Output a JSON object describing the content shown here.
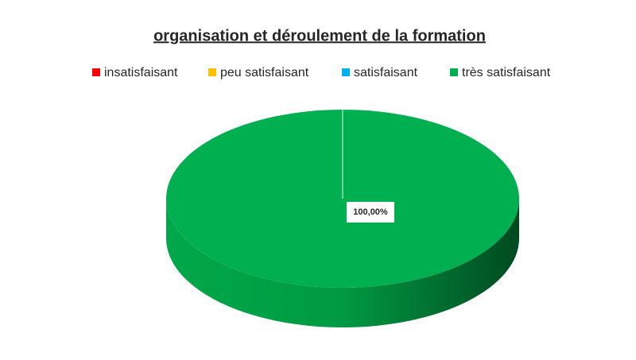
{
  "chart_data": {
    "type": "pie",
    "title": "organisation et déroulement de la formation",
    "categories": [
      "insatisfaisant",
      "peu satisfaisant",
      "satisfaisant",
      "très satisfaisant"
    ],
    "values": [
      0,
      0,
      0,
      100
    ],
    "value_labels": [
      null,
      null,
      null,
      "100,00%"
    ],
    "colors": [
      "#ff0000",
      "#ffc000",
      "#00b0f0",
      "#00b050"
    ],
    "legend": "top",
    "style": "3d"
  }
}
